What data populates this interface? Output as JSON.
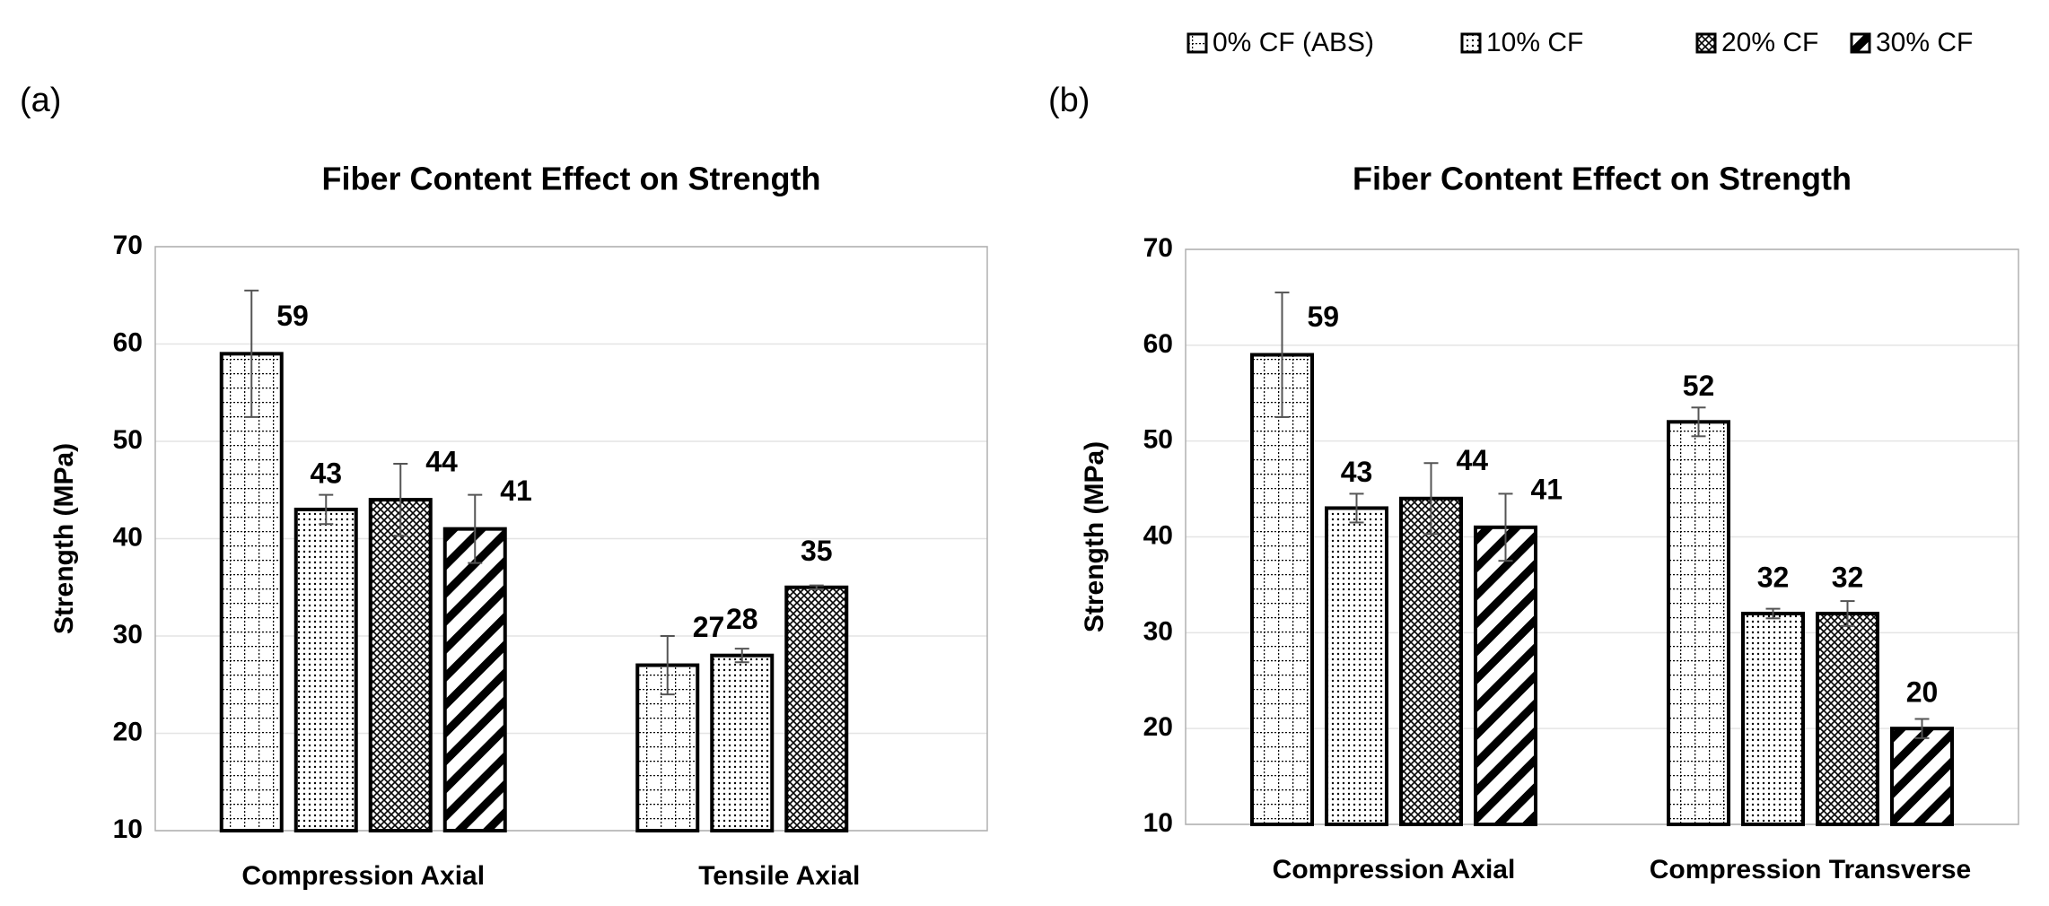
{
  "chart_data": [
    {
      "type": "bar",
      "label": "(a)",
      "title": "Fiber Content Effect on Strength",
      "ylabel": "Strength (MPa)",
      "categories": [
        "Compression Axial",
        "Tensile Axial"
      ],
      "series": [
        {
          "name": "0% CF (ABS)",
          "pattern": "grid",
          "values": [
            59,
            27
          ],
          "errors": [
            6.5,
            3
          ]
        },
        {
          "name": "10% CF",
          "pattern": "dots",
          "values": [
            43,
            28
          ],
          "errors": [
            1.5,
            0.7
          ]
        },
        {
          "name": "20% CF",
          "pattern": "crosshatch",
          "values": [
            44,
            35
          ],
          "errors": [
            3.7,
            0.2
          ]
        },
        {
          "name": "30% CF",
          "pattern": "diagonal",
          "values": [
            41,
            null
          ],
          "errors": [
            3.5,
            null
          ]
        }
      ],
      "ylim": [
        10,
        70
      ],
      "yticks": [
        10,
        20,
        30,
        40,
        50,
        60,
        70
      ],
      "grid": true
    },
    {
      "type": "bar",
      "label": "(b)",
      "title": "Fiber Content Effect on Strength",
      "ylabel": "Strength (MPa)",
      "categories": [
        "Compression Axial",
        "Compression Transverse"
      ],
      "series": [
        {
          "pattern": "grid",
          "values": [
            59,
            52
          ],
          "errors": [
            6.5,
            1.5
          ]
        },
        {
          "pattern": "dots",
          "values": [
            43,
            32
          ],
          "errors": [
            1.5,
            0.5
          ]
        },
        {
          "pattern": "crosshatch",
          "values": [
            44,
            32
          ],
          "errors": [
            3.7,
            1.3
          ]
        },
        {
          "pattern": "diagonal",
          "values": [
            41,
            20
          ],
          "errors": [
            3.5,
            1
          ]
        }
      ],
      "ylim": [
        10,
        70
      ],
      "yticks": [
        10,
        20,
        30,
        40,
        50,
        60,
        70
      ],
      "grid": true
    }
  ]
}
